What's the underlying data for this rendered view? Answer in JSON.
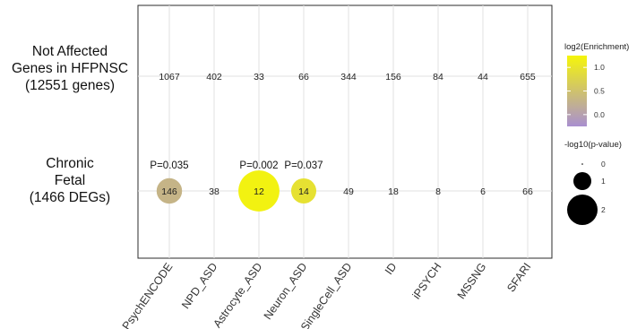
{
  "chart_data": {
    "type": "scatter",
    "subtype": "dot-plot",
    "categories": [
      "PsychENCODE",
      "NPD_ASD",
      "Astrocyte_ASD",
      "Neuron_ASD",
      "SingleCell_ASD",
      "ID",
      "iPSYCH",
      "MSSNG",
      "SFARI"
    ],
    "rows": [
      {
        "label_lines": [
          "Not Affected",
          "Genes in HFPNSC",
          "(12551 genes)"
        ],
        "counts": [
          1067,
          402,
          33,
          66,
          344,
          156,
          84,
          44,
          655
        ],
        "log2_enrichment": [
          null,
          null,
          null,
          null,
          null,
          null,
          null,
          null,
          null
        ],
        "neg_log10_p": [
          0,
          0,
          0,
          0,
          0,
          0,
          0,
          0,
          0
        ],
        "p_labels": [
          "",
          "",
          "",
          "",
          "",
          "",
          "",
          "",
          ""
        ]
      },
      {
        "label_lines": [
          "Chronic",
          "Fetal",
          "(1466 DEGs)"
        ],
        "counts": [
          146,
          38,
          12,
          14,
          49,
          18,
          8,
          6,
          66
        ],
        "log2_enrichment": [
          0.3,
          null,
          1.2,
          0.95,
          null,
          null,
          null,
          null,
          null
        ],
        "neg_log10_p": [
          1.46,
          0,
          2.7,
          1.43,
          0,
          0,
          0,
          0,
          0
        ],
        "p_labels": [
          "P=0.035",
          "",
          "P=0.002",
          "P=0.037",
          "",
          "",
          "",
          "",
          ""
        ]
      }
    ],
    "color_legend": {
      "title": "log2(Enrichment)",
      "ticks": [
        0.0,
        0.5,
        1.0
      ],
      "tick_labels": [
        "0.0",
        "0.5",
        "1.0"
      ],
      "range": [
        -0.25,
        1.25
      ],
      "colors": [
        "#a98fd0",
        "#f5f50a"
      ]
    },
    "size_legend": {
      "title": "-log10(p-value)",
      "values": [
        0,
        1,
        2
      ],
      "labels": [
        "0",
        "1",
        "2"
      ]
    },
    "grid": true,
    "legend_position": "right"
  }
}
